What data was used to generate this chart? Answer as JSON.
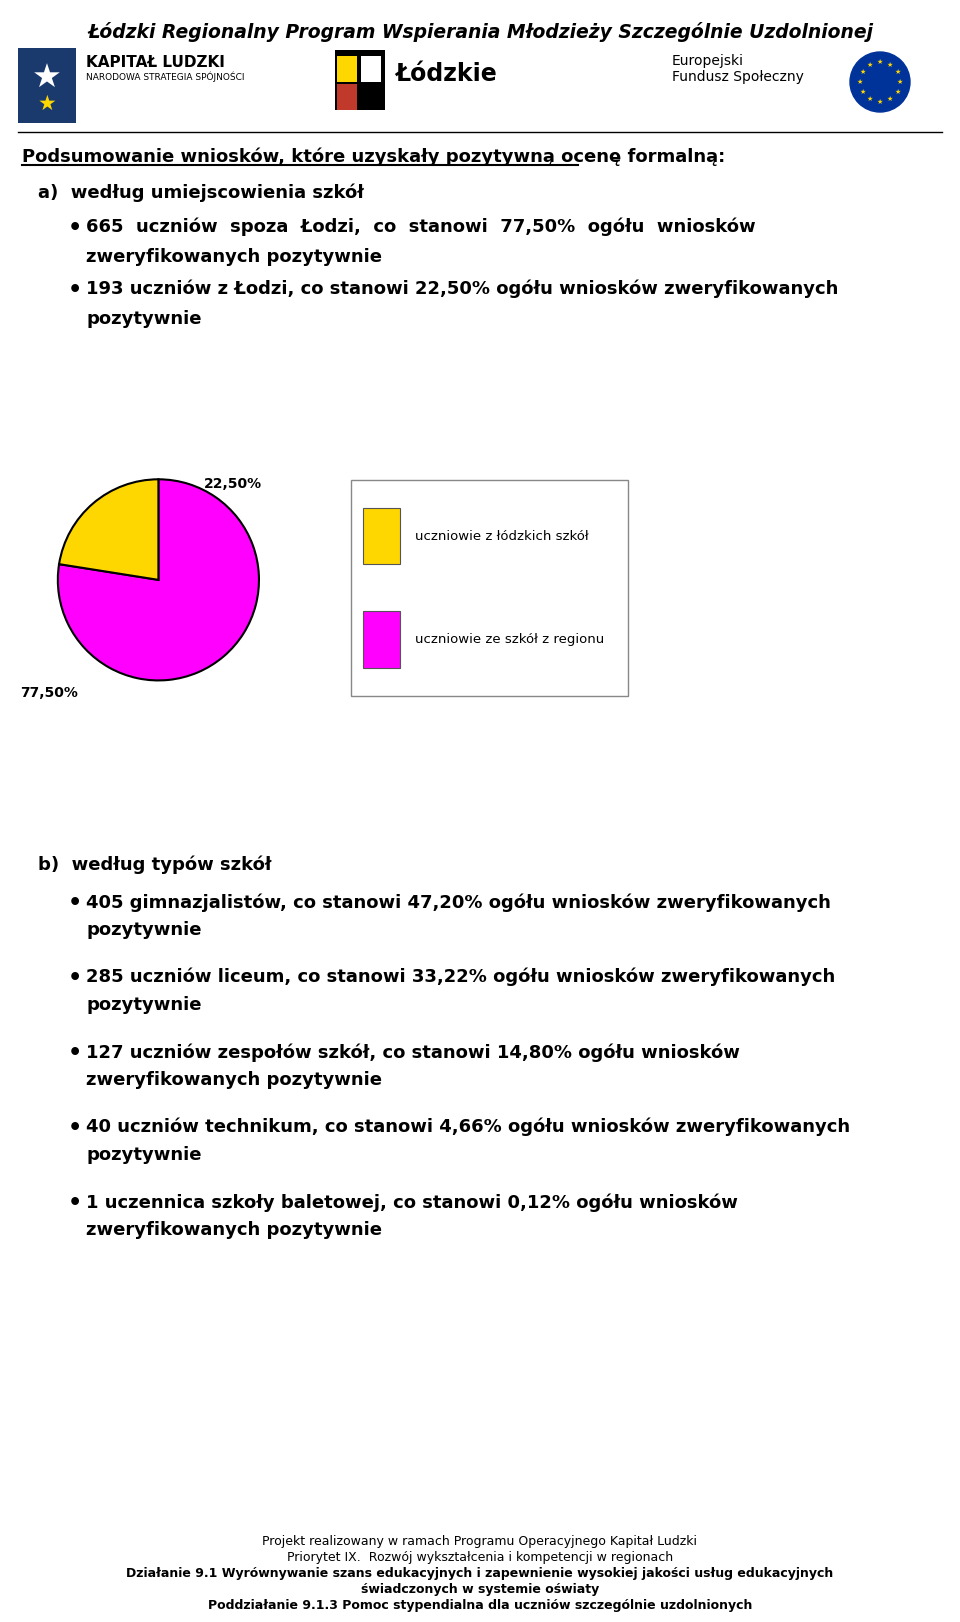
{
  "title": "Łódzki Regionalny Program Wspierania Młodzieży Szczególnie Uzdolnionej",
  "section_header": "Podsumowanie wniosków, które uzyskały pozytywną ocenę formalną:",
  "section_a_header": "a)  według umiejscowienia szkół",
  "bullet_a1_line1": "665  uczniów  spoza  Łodzi,  co  stanowi  77,50%  ogółu  wniosków",
  "bullet_a1_line2": "zweryfikowanych pozytywnie",
  "bullet_a2_line1": "193 uczniów z Łodzi, co stanowi 22,50% ogółu wniosków zweryfikowanych",
  "bullet_a2_line2": "pozytywnie",
  "pie1_values": [
    77.5,
    22.5
  ],
  "pie1_colors": [
    "#FF00FF",
    "#FFD700"
  ],
  "pie1_label_large": "77,50%",
  "pie1_label_small": "22,50%",
  "pie1_legend": [
    "uczniowie z łódzkich szkół",
    "uczniowie ze szkół z regionu"
  ],
  "pie1_legend_colors": [
    "#FFD700",
    "#FF00FF"
  ],
  "section_b_header": "b)  według typów szkół",
  "bullets_b": [
    [
      "405 gimnazjalistów, co stanowi 47,20% ogółu wniosków zweryfikowanych",
      "pozytywnie"
    ],
    [
      "285 uczniów liceum, co stanowi 33,22% ogółu wniosków zweryfikowanych",
      "pozytywnie"
    ],
    [
      "127 uczniów zespołów szkół, co stanowi 14,80% ogółu wniosków",
      "zweryfikowanych pozytywnie"
    ],
    [
      "40 uczniów technikum, co stanowi 4,66% ogółu wniosków zweryfikowanych",
      "pozytywnie"
    ],
    [
      "1 uczennica szkoły baletowej, co stanowi 0,12% ogółu wniosków",
      "zweryfikowanych pozytywnie"
    ]
  ],
  "footer_lines": [
    [
      "Projekt realizowany w ramach Programu Operacyjnego Kapitał Ludzki",
      "normal"
    ],
    [
      "Priorytet IX.  Rozwój wykształcenia i kompetencji w regionach",
      "normal"
    ],
    [
      "Działanie 9.1 Wyrównywanie szans edukacyjnych i zapewnienie wysokiej jakości usług edukacyjnych",
      "bold"
    ],
    [
      "świadczonych w systemie oświaty",
      "bold"
    ],
    [
      "Poddziałanie 9.1.3 Pomoc stypendialna dla uczniów szczególnie uzdolnionych",
      "bold"
    ]
  ],
  "bg_color": "#FFFFFF",
  "kl_logo_color": "#1a3a6e",
  "eu_logo_color": "#003399",
  "eu_star_color": "#FFD700"
}
